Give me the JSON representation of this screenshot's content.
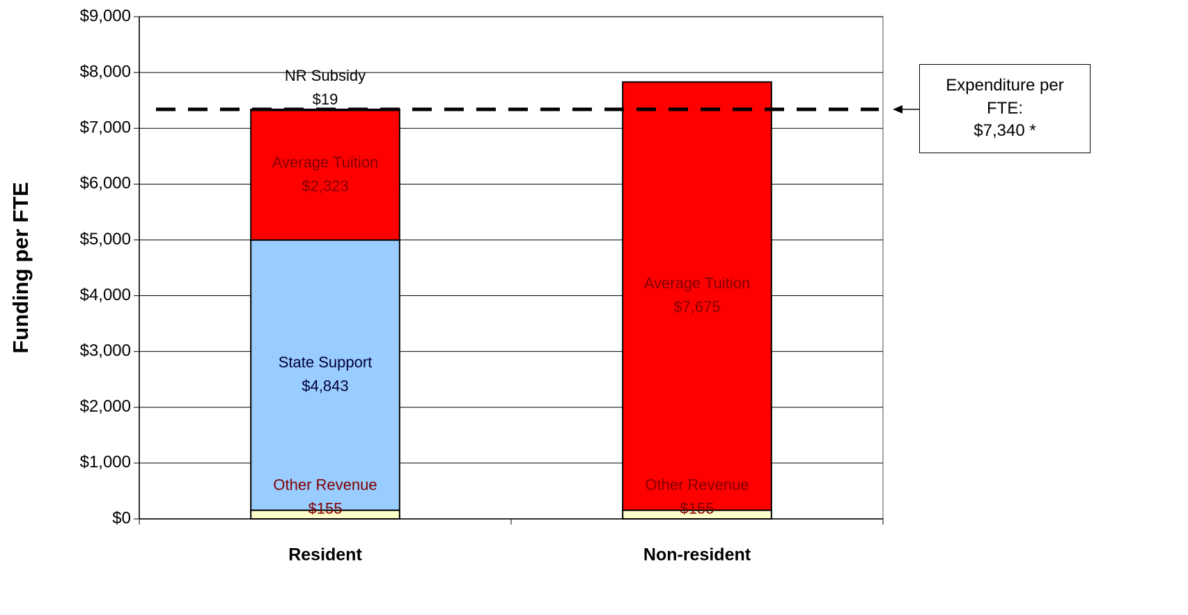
{
  "chart_data": {
    "type": "stacked_bar",
    "y_label": "Funding per FTE",
    "categories": [
      "Resident",
      "Non-resident"
    ],
    "series": [
      {
        "name": "Other Revenue",
        "color": "#ffffcc",
        "values": [
          155,
          155
        ],
        "value_labels": [
          "$155",
          "$155"
        ]
      },
      {
        "name": "State Support",
        "color": "#99ccff",
        "values": [
          4843,
          null
        ],
        "value_labels": [
          "$4,843",
          null
        ]
      },
      {
        "name": "Average Tuition",
        "color": "#ff0000",
        "values": [
          2323,
          7675
        ],
        "value_labels": [
          "$2,323",
          "$7,675"
        ]
      },
      {
        "name": "NR Subsidy",
        "color": "#ff0000",
        "values": [
          19,
          null
        ],
        "value_labels": [
          "$19",
          null
        ]
      }
    ],
    "ylim": [
      0,
      9000
    ],
    "yticks": [
      {
        "value": 0,
        "label": "$0"
      },
      {
        "value": 1000,
        "label": "$1,000"
      },
      {
        "value": 2000,
        "label": "$2,000"
      },
      {
        "value": 3000,
        "label": "$3,000"
      },
      {
        "value": 4000,
        "label": "$4,000"
      },
      {
        "value": 5000,
        "label": "$5,000"
      },
      {
        "value": 6000,
        "label": "$6,000"
      },
      {
        "value": 7000,
        "label": "$7,000"
      },
      {
        "value": 8000,
        "label": "$8,000"
      },
      {
        "value": 9000,
        "label": "$9,000"
      }
    ],
    "grid": true,
    "reference_line": {
      "value": 7340,
      "label": "Expenditure per FTE:",
      "value_label": "$7,340 *"
    }
  }
}
